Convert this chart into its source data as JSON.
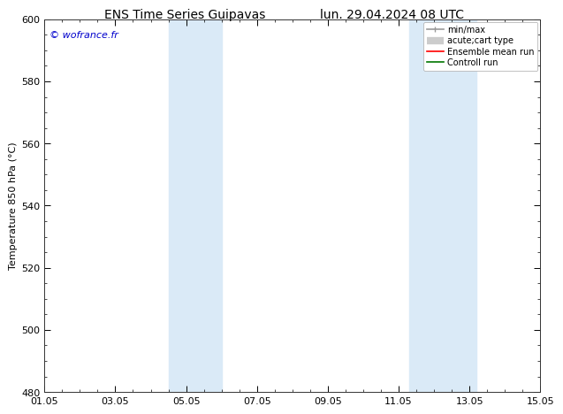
{
  "title_left": "ENS Time Series Guipavas",
  "title_right": "lun. 29.04.2024 08 UTC",
  "ylabel": "Temperature 850 hPa (°C)",
  "watermark": "© wofrance.fr",
  "watermark_color": "#0000cc",
  "ylim": [
    480,
    600
  ],
  "yticks": [
    480,
    500,
    520,
    540,
    560,
    580,
    600
  ],
  "xtick_labels": [
    "01.05",
    "03.05",
    "05.05",
    "07.05",
    "09.05",
    "11.05",
    "13.05",
    "15.05"
  ],
  "xtick_positions": [
    0,
    2,
    4,
    6,
    8,
    10,
    12,
    14
  ],
  "xlim": [
    0,
    14
  ],
  "shade_bands": [
    {
      "xmin": 3.5,
      "xmax": 5.0
    },
    {
      "xmin": 10.3,
      "xmax": 12.2
    }
  ],
  "shade_color": "#daeaf7",
  "background_color": "#ffffff",
  "legend_entries": [
    {
      "label": "min/max",
      "color": "#999999",
      "lw": 1.2
    },
    {
      "label": "acute;cart type",
      "color": "#cccccc",
      "lw": 6
    },
    {
      "label": "Ensemble mean run",
      "color": "#ff0000",
      "lw": 1.2
    },
    {
      "label": "Controll run",
      "color": "#007700",
      "lw": 1.2
    }
  ],
  "grid_color": "#bbbbbb",
  "spine_color": "#333333",
  "title_fontsize": 10,
  "label_fontsize": 8,
  "tick_fontsize": 8,
  "legend_fontsize": 7
}
